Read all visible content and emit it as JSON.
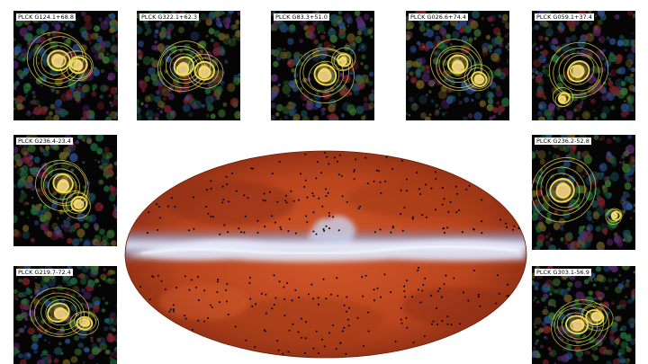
{
  "panels": [
    {
      "id": "p1",
      "label": "PLCK G124.1+68.8"
    },
    {
      "id": "p2",
      "label": "PLCK G322.1+62.3"
    },
    {
      "id": "p3",
      "label": "PLCK G83.3+51.0"
    },
    {
      "id": "p4",
      "label": "PLCK G026.6+74.4"
    },
    {
      "id": "p5",
      "label": "PLCK G059.1+37.4"
    },
    {
      "id": "p6",
      "label": "PLCK G236.4-23.4"
    },
    {
      "id": "p7",
      "label": "PLCK G236.2-52.8"
    },
    {
      "id": "p8",
      "label": "PLCK G219.7-72.4"
    },
    {
      "id": "p9",
      "label": "PLCK G303.1-56.9"
    }
  ],
  "colors": {
    "contour": "#f2e25a",
    "panel_background": "#050505",
    "sky_dust": "#b9441d",
    "galactic_plane": "#c9d3ef",
    "source_marker": "#000000"
  }
}
